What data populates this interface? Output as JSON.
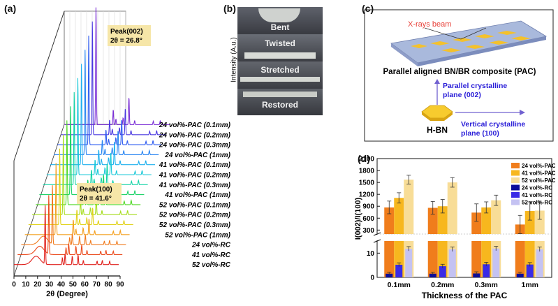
{
  "panel_labels": {
    "a": "(a)",
    "b": "(b)",
    "c": "(c)",
    "d": "(d)"
  },
  "panel_a": {
    "xlabel": "2θ (Degree)",
    "ylabel": "Intensity (A.u.)",
    "x_ticks": [
      "0",
      "10",
      "20",
      "30",
      "40",
      "50",
      "60",
      "70",
      "80",
      "90"
    ],
    "peak002_title": "Peak(002)",
    "peak002_value": "2θ = 26.8°",
    "peak100_title": "Peak(100)",
    "peak100_value": "2θ = 41.6°",
    "series_labels": [
      "24 vol%-PAC  (0.1mm)",
      "24 vol%-PAC  (0.2mm)",
      "24 vol%-PAC  (0.3mm)",
      "24 vol%-PAC  (1mm)",
      "41 vol%-PAC  (0.1mm)",
      "41 vol%-PAC  (0.2mm)",
      "41 vol%-PAC  (0.3mm)",
      "41 vol%-PAC  (1mm)",
      "52 vol%-PAC  (0.1mm)",
      "52 vol%-PAC  (0.2mm)",
      "52 vol%-PAC  (0.3mm)",
      "52 vol%-PAC  (1mm)",
      "24 vol%-RC",
      "41 vol%-RC",
      "52 vol%-RC"
    ],
    "series_colors": [
      "#7b2fd6",
      "#4a38e0",
      "#2f5cf0",
      "#2a86f2",
      "#1fb0ee",
      "#19c8d8",
      "#12d2a6",
      "#1fd36a",
      "#50d826",
      "#a5dc1c",
      "#e1d21a",
      "#f4a020",
      "#f07a1c",
      "#eb4a1c",
      "#e0201c"
    ]
  },
  "panel_b": {
    "labels": [
      "Bent",
      "Twisted",
      "Stretched",
      "Restored"
    ]
  },
  "panel_c": {
    "xray_label": "X-rays beam",
    "pac_label": "Parallel aligned BN/BR composite (PAC)",
    "parallel_label_1": "Parallel crystalline",
    "parallel_label_2": "plane (002)",
    "hbn_label": "H-BN",
    "vertical_label_1": "Vertical crystalline",
    "vertical_label_2": "plane (100)"
  },
  "chart_data": {
    "type": "bar",
    "title": "",
    "xlabel": "Thickness of the PAC",
    "ylabel": "I(002)/I(100)",
    "categories": [
      "0.1mm",
      "0.2mm",
      "0.3mm",
      "1mm"
    ],
    "ylim_upper": [
      200,
      2100
    ],
    "ylim_lower": [
      0,
      15
    ],
    "y_ticks_upper": [
      "300",
      "600",
      "900",
      "1200",
      "1500",
      "1800",
      "2100"
    ],
    "y_ticks_lower": [
      "0",
      "10"
    ],
    "legend": "top-right",
    "series": [
      {
        "name": "24 vol%-PAC",
        "color": "#f07d1c",
        "values": [
          870,
          860,
          740,
          440
        ],
        "errors": [
          160,
          160,
          220,
          230
        ]
      },
      {
        "name": "41 vol%-PAC",
        "color": "#f7b71e",
        "values": [
          1110,
          900,
          870,
          780
        ],
        "errors": [
          130,
          170,
          140,
          230
        ]
      },
      {
        "name": "52 vol%-PAC",
        "color": "#f8dd97",
        "values": [
          1570,
          1500,
          1050,
          790
        ],
        "errors": [
          110,
          120,
          130,
          220
        ]
      },
      {
        "name": "24 vol%-RC",
        "color": "#0c0c9a",
        "values": [
          1.5,
          1.5,
          1.6,
          1.5
        ],
        "errors": [
          0.6,
          0.6,
          0.7,
          0.6
        ]
      },
      {
        "name": "41 vol%-RC",
        "color": "#3a2be6",
        "values": [
          5.2,
          4.6,
          5.4,
          5.3
        ],
        "errors": [
          0.8,
          0.8,
          0.8,
          0.8
        ]
      },
      {
        "name": "52 vol%-RC",
        "color": "#c4c2f2",
        "values": [
          11.8,
          11.6,
          11.9,
          11.6
        ],
        "errors": [
          0.9,
          0.9,
          0.9,
          0.9
        ]
      }
    ]
  }
}
